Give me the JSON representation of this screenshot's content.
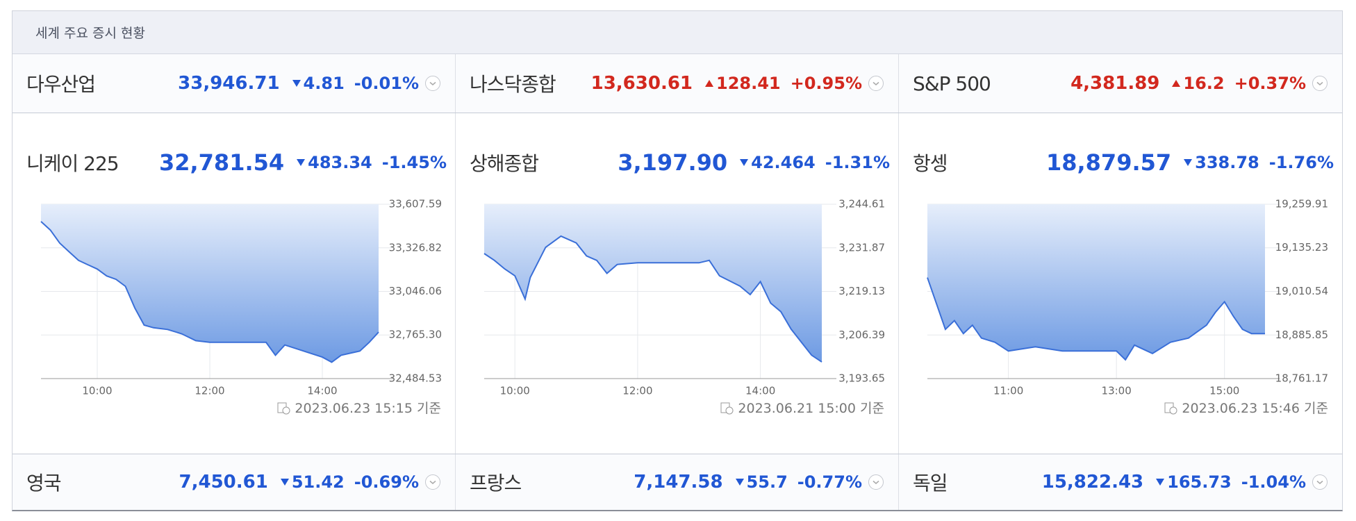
{
  "header": {
    "title": "세계 주요 증시 현황"
  },
  "top_row": [
    {
      "name": "다우산업",
      "value": "33,946.71",
      "change": "4.81",
      "pct": "-0.01%",
      "direction": "down"
    },
    {
      "name": "나스닥종합",
      "value": "13,630.61",
      "change": "128.41",
      "pct": "+0.95%",
      "direction": "up"
    },
    {
      "name": "S&P 500",
      "value": "4,381.89",
      "change": "16.2",
      "pct": "+0.37%",
      "direction": "up"
    }
  ],
  "featured": [
    {
      "name": "니케이 225",
      "value": "32,781.54",
      "change": "483.34",
      "pct": "-1.45%",
      "direction": "down",
      "timestamp": "2023.06.23 15:15 기준",
      "chart": {
        "type": "line",
        "x": [
          "09:00",
          "09:10",
          "09:20",
          "09:30",
          "09:40",
          "09:50",
          "10:00",
          "10:10",
          "10:20",
          "10:30",
          "10:40",
          "10:50",
          "11:00",
          "11:15",
          "11:30",
          "11:45",
          "12:00",
          "12:30",
          "13:00",
          "13:10",
          "13:20",
          "13:40",
          "14:00",
          "14:10",
          "14:20",
          "14:40",
          "14:50",
          "15:00"
        ],
        "values": [
          33496,
          33441,
          33357,
          33301,
          33246,
          33218,
          33190,
          33146,
          33124,
          33079,
          32940,
          32829,
          32812,
          32801,
          32773,
          32729,
          32718,
          32718,
          32718,
          32635,
          32701,
          32662,
          32623,
          32590,
          32635,
          32662,
          32718,
          32784
        ],
        "xticks": [
          "10:00",
          "12:00",
          "14:00"
        ],
        "ylim": [
          32484.53,
          33607.59
        ],
        "yticks": [
          {
            "value": 32484.53,
            "label": "32,484.53"
          },
          {
            "value": 32765.3,
            "label": "32,765.30"
          },
          {
            "value": 33046.06,
            "label": "33,046.06"
          },
          {
            "value": 33326.82,
            "label": "33,326.82"
          },
          {
            "value": 33607.59,
            "label": "33,607.59"
          }
        ],
        "grid": true,
        "color": "#3a6fd8"
      }
    },
    {
      "name": "상해종합",
      "value": "3,197.90",
      "change": "42.464",
      "pct": "-1.31%",
      "direction": "down",
      "timestamp": "2023.06.21 15:00 기준",
      "chart": {
        "type": "line",
        "x": [
          "09:30",
          "09:40",
          "09:50",
          "10:00",
          "10:10",
          "10:15",
          "10:30",
          "10:45",
          "11:00",
          "11:10",
          "11:20",
          "11:30",
          "11:40",
          "12:00",
          "13:00",
          "13:10",
          "13:20",
          "13:40",
          "13:50",
          "14:00",
          "14:10",
          "14:20",
          "14:30",
          "14:40",
          "14:50",
          "15:00"
        ],
        "values": [
          3230.2,
          3228.2,
          3225.7,
          3223.7,
          3216.9,
          3223.2,
          3232.0,
          3235.3,
          3233.3,
          3229.5,
          3228.2,
          3224.4,
          3227.0,
          3227.5,
          3227.5,
          3228.2,
          3223.7,
          3220.7,
          3218.2,
          3222.0,
          3215.7,
          3213.2,
          3208.1,
          3204.3,
          3200.5,
          3198.5
        ],
        "xticks": [
          "10:00",
          "12:00",
          "14:00"
        ],
        "ylim": [
          3193.65,
          3244.61
        ],
        "yticks": [
          {
            "value": 3193.65,
            "label": "3,193.65"
          },
          {
            "value": 3206.39,
            "label": "3,206.39"
          },
          {
            "value": 3219.13,
            "label": "3,219.13"
          },
          {
            "value": 3231.87,
            "label": "3,231.87"
          },
          {
            "value": 3244.61,
            "label": "3,244.61"
          }
        ],
        "grid": true,
        "color": "#3a6fd8"
      }
    },
    {
      "name": "항셍",
      "value": "18,879.57",
      "change": "338.78",
      "pct": "-1.76%",
      "direction": "down",
      "timestamp": "2023.06.23 15:46 기준",
      "chart": {
        "type": "line",
        "x": [
          "09:30",
          "09:40",
          "09:50",
          "10:00",
          "10:10",
          "10:20",
          "10:30",
          "10:45",
          "11:00",
          "11:30",
          "12:00",
          "12:30",
          "13:00",
          "13:10",
          "13:20",
          "13:40",
          "14:00",
          "14:20",
          "14:40",
          "14:50",
          "15:00",
          "15:10",
          "15:20",
          "15:30",
          "15:45"
        ],
        "values": [
          19050,
          18976,
          18902,
          18927,
          18890,
          18914,
          18877,
          18865,
          18840,
          18852,
          18840,
          18840,
          18840,
          18815,
          18857,
          18833,
          18865,
          18877,
          18914,
          18951,
          18981,
          18939,
          18902,
          18890,
          18890
        ],
        "xticks": [
          "11:00",
          "13:00",
          "15:00"
        ],
        "ylim": [
          18761.17,
          19259.91
        ],
        "yticks": [
          {
            "value": 18761.17,
            "label": "18,761.17"
          },
          {
            "value": 18885.85,
            "label": "18,885.85"
          },
          {
            "value": 19010.54,
            "label": "19,010.54"
          },
          {
            "value": 19135.23,
            "label": "19,135.23"
          },
          {
            "value": 19259.91,
            "label": "19,259.91"
          }
        ],
        "grid": true,
        "color": "#3a6fd8"
      }
    }
  ],
  "bottom_row": [
    {
      "name": "영국",
      "value": "7,450.61",
      "change": "51.42",
      "pct": "-0.69%",
      "direction": "down"
    },
    {
      "name": "프랑스",
      "value": "7,147.58",
      "change": "55.7",
      "pct": "-0.77%",
      "direction": "down"
    },
    {
      "name": "독일",
      "value": "15,822.43",
      "change": "165.73",
      "pct": "-1.04%",
      "direction": "down"
    }
  ]
}
